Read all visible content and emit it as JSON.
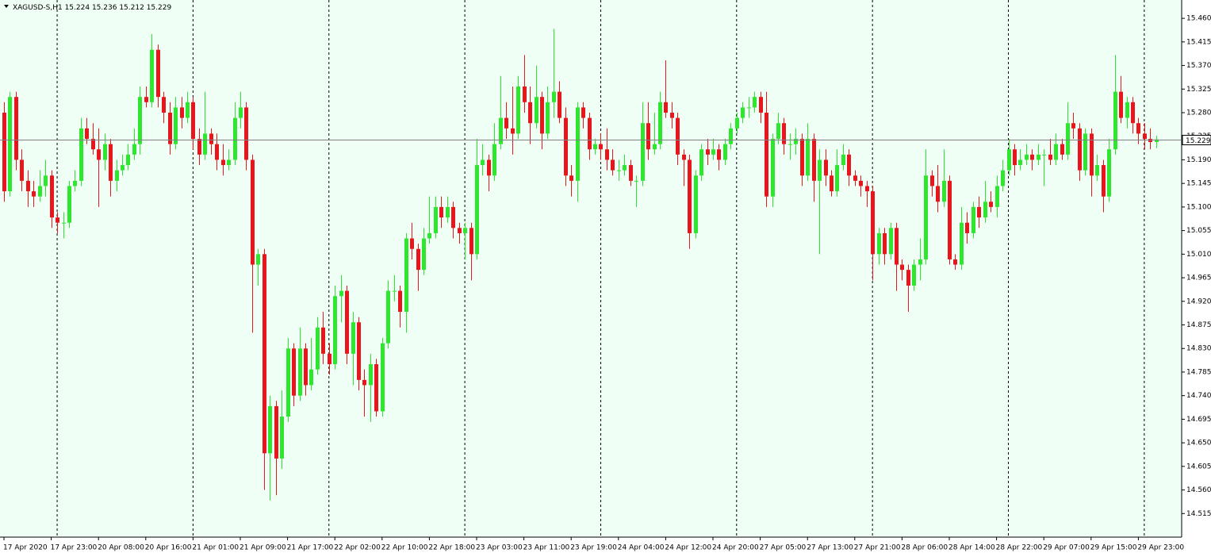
{
  "chart_data": {
    "type": "candlestick",
    "title": "XAGUSD-S,H1",
    "up_color": "#2ee62e",
    "down_color": "#e8161c",
    "ylim": [
      14.47,
      15.495
    ],
    "yticks": [
      {
        "value": 15.46,
        "label": "15.460"
      },
      {
        "value": 15.415,
        "label": "15.415"
      },
      {
        "value": 15.37,
        "label": "15.370"
      },
      {
        "value": 15.325,
        "label": "15.325"
      },
      {
        "value": 15.28,
        "label": "15.280"
      },
      {
        "value": 15.235,
        "label": "15.235"
      },
      {
        "value": 15.19,
        "label": "15.190"
      },
      {
        "value": 15.145,
        "label": "15.145"
      },
      {
        "value": 15.1,
        "label": "15.100"
      },
      {
        "value": 15.055,
        "label": "15.055"
      },
      {
        "value": 15.01,
        "label": "15.010"
      },
      {
        "value": 14.965,
        "label": "14.965"
      },
      {
        "value": 14.92,
        "label": "14.920"
      },
      {
        "value": 14.875,
        "label": "14.875"
      },
      {
        "value": 14.83,
        "label": "14.830"
      },
      {
        "value": 14.785,
        "label": "14.785"
      },
      {
        "value": 14.74,
        "label": "14.740"
      },
      {
        "value": 14.695,
        "label": "14.695"
      },
      {
        "value": 14.65,
        "label": "14.650"
      },
      {
        "value": 14.605,
        "label": "14.605"
      },
      {
        "value": 14.56,
        "label": "14.560"
      },
      {
        "value": 14.515,
        "label": "14.515"
      }
    ],
    "xlabels": [
      "17 Apr 2020",
      "17 Apr 23:00",
      "20 Apr 08:00",
      "20 Apr 16:00",
      "21 Apr 01:00",
      "21 Apr 09:00",
      "21 Apr 17:00",
      "22 Apr 02:00",
      "22 Apr 10:00",
      "22 Apr 18:00",
      "23 Apr 03:00",
      "23 Apr 11:00",
      "23 Apr 19:00",
      "24 Apr 04:00",
      "24 Apr 12:00",
      "24 Apr 20:00",
      "27 Apr 05:00",
      "27 Apr 13:00",
      "27 Apr 21:00",
      "28 Apr 06:00",
      "28 Apr 14:00",
      "28 Apr 22:00",
      "29 Apr 07:00",
      "29 Apr 15:00",
      "29 Apr 23:00"
    ],
    "ohlc": [
      [
        15.28,
        15.3,
        15.11,
        15.13
      ],
      [
        15.13,
        15.32,
        15.12,
        15.31
      ],
      [
        15.31,
        15.32,
        15.17,
        15.19
      ],
      [
        15.19,
        15.21,
        15.13,
        15.15
      ],
      [
        15.15,
        15.17,
        15.1,
        15.13
      ],
      [
        15.13,
        15.15,
        15.1,
        15.12
      ],
      [
        15.12,
        15.17,
        15.11,
        15.14
      ],
      [
        15.14,
        15.19,
        15.12,
        15.16
      ],
      [
        15.16,
        15.17,
        15.06,
        15.08
      ],
      [
        15.08,
        15.09,
        15.05,
        15.07
      ],
      [
        15.07,
        15.09,
        15.04,
        15.07
      ],
      [
        15.07,
        15.15,
        15.06,
        15.14
      ],
      [
        15.14,
        15.17,
        15.13,
        15.15
      ],
      [
        15.15,
        15.27,
        15.14,
        15.25
      ],
      [
        15.25,
        15.27,
        15.22,
        15.23
      ],
      [
        15.23,
        15.26,
        15.2,
        15.21
      ],
      [
        15.21,
        15.25,
        15.1,
        15.19
      ],
      [
        15.19,
        15.24,
        15.17,
        15.22
      ],
      [
        15.22,
        15.23,
        15.12,
        15.15
      ],
      [
        15.15,
        15.19,
        15.13,
        15.17
      ],
      [
        15.17,
        15.2,
        15.16,
        15.18
      ],
      [
        15.18,
        15.22,
        15.17,
        15.2
      ],
      [
        15.2,
        15.25,
        15.19,
        15.22
      ],
      [
        15.22,
        15.33,
        15.2,
        15.31
      ],
      [
        15.31,
        15.33,
        15.29,
        15.3
      ],
      [
        15.3,
        15.43,
        15.29,
        15.4
      ],
      [
        15.4,
        15.41,
        15.29,
        15.31
      ],
      [
        15.31,
        15.32,
        15.26,
        15.28
      ],
      [
        15.28,
        15.3,
        15.2,
        15.22
      ],
      [
        15.22,
        15.31,
        15.21,
        15.29
      ],
      [
        15.29,
        15.31,
        15.25,
        15.27
      ],
      [
        15.27,
        15.32,
        15.26,
        15.3
      ],
      [
        15.3,
        15.31,
        15.21,
        15.23
      ],
      [
        15.23,
        15.25,
        15.18,
        15.2
      ],
      [
        15.2,
        15.32,
        15.19,
        15.24
      ],
      [
        15.24,
        15.25,
        15.2,
        15.22
      ],
      [
        15.22,
        15.24,
        15.17,
        15.19
      ],
      [
        15.19,
        15.22,
        15.16,
        15.18
      ],
      [
        15.18,
        15.21,
        15.17,
        15.19
      ],
      [
        15.19,
        15.3,
        15.18,
        15.27
      ],
      [
        15.27,
        15.32,
        15.25,
        15.29
      ],
      [
        15.29,
        15.3,
        15.17,
        15.19
      ],
      [
        15.19,
        15.2,
        14.86,
        14.99
      ],
      [
        14.99,
        15.02,
        14.95,
        15.01
      ],
      [
        15.01,
        15.02,
        14.56,
        14.63
      ],
      [
        14.63,
        14.74,
        14.54,
        14.72
      ],
      [
        14.72,
        14.73,
        14.55,
        14.62
      ],
      [
        14.62,
        14.75,
        14.6,
        14.7
      ],
      [
        14.7,
        14.85,
        14.69,
        14.83
      ],
      [
        14.83,
        14.84,
        14.72,
        14.74
      ],
      [
        14.74,
        14.87,
        14.73,
        14.83
      ],
      [
        14.83,
        14.84,
        14.74,
        14.76
      ],
      [
        14.76,
        14.85,
        14.75,
        14.79
      ],
      [
        14.79,
        14.89,
        14.78,
        14.87
      ],
      [
        14.87,
        14.9,
        14.8,
        14.82
      ],
      [
        14.82,
        14.84,
        14.78,
        14.8
      ],
      [
        14.8,
        14.95,
        14.79,
        14.93
      ],
      [
        14.93,
        14.97,
        14.88,
        14.94
      ],
      [
        14.94,
        14.95,
        14.8,
        14.82
      ],
      [
        14.82,
        14.9,
        14.76,
        14.88
      ],
      [
        14.88,
        14.89,
        14.75,
        14.77
      ],
      [
        14.77,
        14.79,
        14.7,
        14.76
      ],
      [
        14.76,
        14.82,
        14.69,
        14.8
      ],
      [
        14.8,
        14.81,
        14.7,
        14.71
      ],
      [
        14.71,
        14.85,
        14.7,
        14.84
      ],
      [
        14.84,
        14.96,
        14.83,
        14.94
      ],
      [
        14.94,
        14.97,
        14.92,
        14.94
      ],
      [
        14.94,
        14.95,
        14.87,
        14.9
      ],
      [
        14.9,
        15.05,
        14.86,
        15.04
      ],
      [
        15.04,
        15.07,
        15.0,
        15.02
      ],
      [
        15.02,
        15.03,
        14.94,
        14.98
      ],
      [
        14.98,
        15.06,
        14.97,
        15.04
      ],
      [
        15.04,
        15.12,
        15.03,
        15.05
      ],
      [
        15.05,
        15.12,
        15.04,
        15.1
      ],
      [
        15.1,
        15.12,
        15.06,
        15.08
      ],
      [
        15.08,
        15.12,
        15.07,
        15.1
      ],
      [
        15.1,
        15.11,
        15.04,
        15.06
      ],
      [
        15.06,
        15.07,
        15.03,
        15.05
      ],
      [
        15.05,
        15.07,
        15.0,
        15.06
      ],
      [
        15.06,
        15.07,
        14.96,
        15.01
      ],
      [
        15.01,
        15.23,
        15.0,
        15.18
      ],
      [
        15.18,
        15.22,
        15.16,
        15.19
      ],
      [
        15.19,
        15.2,
        15.13,
        15.16
      ],
      [
        15.16,
        15.26,
        15.15,
        15.22
      ],
      [
        15.22,
        15.35,
        15.21,
        15.27
      ],
      [
        15.27,
        15.3,
        15.23,
        15.25
      ],
      [
        15.25,
        15.33,
        15.2,
        15.24
      ],
      [
        15.24,
        15.35,
        15.23,
        15.33
      ],
      [
        15.33,
        15.39,
        15.28,
        15.3
      ],
      [
        15.3,
        15.33,
        15.22,
        15.26
      ],
      [
        15.26,
        15.37,
        15.25,
        15.31
      ],
      [
        15.31,
        15.32,
        15.21,
        15.24
      ],
      [
        15.24,
        15.33,
        15.23,
        15.3
      ],
      [
        15.3,
        15.44,
        15.27,
        15.32
      ],
      [
        15.32,
        15.34,
        15.26,
        15.27
      ],
      [
        15.27,
        15.29,
        15.14,
        15.16
      ],
      [
        15.16,
        15.18,
        15.12,
        15.15
      ],
      [
        15.15,
        15.3,
        15.11,
        15.29
      ],
      [
        15.29,
        15.3,
        15.25,
        15.27
      ],
      [
        15.27,
        15.28,
        15.19,
        15.21
      ],
      [
        15.21,
        15.23,
        15.2,
        15.22
      ],
      [
        15.22,
        15.24,
        15.19,
        15.21
      ],
      [
        15.21,
        15.25,
        15.17,
        15.19
      ],
      [
        15.19,
        15.21,
        15.16,
        15.17
      ],
      [
        15.17,
        15.19,
        15.15,
        15.17
      ],
      [
        15.17,
        15.2,
        15.16,
        15.18
      ],
      [
        15.18,
        15.19,
        15.14,
        15.15
      ],
      [
        15.15,
        15.16,
        15.1,
        15.15
      ],
      [
        15.15,
        15.3,
        15.14,
        15.26
      ],
      [
        15.26,
        15.3,
        15.19,
        15.21
      ],
      [
        15.21,
        15.28,
        15.2,
        15.22
      ],
      [
        15.22,
        15.32,
        15.21,
        15.3
      ],
      [
        15.3,
        15.38,
        15.27,
        15.28
      ],
      [
        15.28,
        15.3,
        15.25,
        15.27
      ],
      [
        15.27,
        15.28,
        15.18,
        15.2
      ],
      [
        15.2,
        15.21,
        15.14,
        15.19
      ],
      [
        15.19,
        15.2,
        15.02,
        15.05
      ],
      [
        15.05,
        15.17,
        15.04,
        15.16
      ],
      [
        15.16,
        15.22,
        15.15,
        15.21
      ],
      [
        15.21,
        15.23,
        15.18,
        15.2
      ],
      [
        15.2,
        15.23,
        15.19,
        15.21
      ],
      [
        15.21,
        15.22,
        15.17,
        15.19
      ],
      [
        15.19,
        15.23,
        15.18,
        15.22
      ],
      [
        15.22,
        15.26,
        15.21,
        15.25
      ],
      [
        15.25,
        15.28,
        15.24,
        15.27
      ],
      [
        15.27,
        15.3,
        15.26,
        15.29
      ],
      [
        15.29,
        15.31,
        15.27,
        15.29
      ],
      [
        15.29,
        15.32,
        15.28,
        15.31
      ],
      [
        15.31,
        15.32,
        15.26,
        15.28
      ],
      [
        15.28,
        15.32,
        15.1,
        15.12
      ],
      [
        15.12,
        15.24,
        15.1,
        15.23
      ],
      [
        15.23,
        15.28,
        15.22,
        15.26
      ],
      [
        15.26,
        15.27,
        15.2,
        15.22
      ],
      [
        15.22,
        15.24,
        15.19,
        15.22
      ],
      [
        15.22,
        15.25,
        15.2,
        15.23
      ],
      [
        15.23,
        15.24,
        15.14,
        15.16
      ],
      [
        15.16,
        15.26,
        15.15,
        15.23
      ],
      [
        15.23,
        15.24,
        15.11,
        15.15
      ],
      [
        15.15,
        15.21,
        15.01,
        15.19
      ],
      [
        15.19,
        15.21,
        15.14,
        15.16
      ],
      [
        15.16,
        15.17,
        15.12,
        15.13
      ],
      [
        15.13,
        15.21,
        15.12,
        15.18
      ],
      [
        15.18,
        15.22,
        15.17,
        15.2
      ],
      [
        15.2,
        15.21,
        15.14,
        15.16
      ],
      [
        15.16,
        15.17,
        15.14,
        15.15
      ],
      [
        15.15,
        15.16,
        15.12,
        15.14
      ],
      [
        15.14,
        15.15,
        15.1,
        15.13
      ],
      [
        15.13,
        15.14,
        14.96,
        15.01
      ],
      [
        15.01,
        15.06,
        14.99,
        15.05
      ],
      [
        15.05,
        15.06,
        14.99,
        15.01
      ],
      [
        15.01,
        15.07,
        15.0,
        15.06
      ],
      [
        15.06,
        15.07,
        14.94,
        14.99
      ],
      [
        14.99,
        15.0,
        14.96,
        14.98
      ],
      [
        14.98,
        14.99,
        14.9,
        14.95
      ],
      [
        14.95,
        15.0,
        14.94,
        14.99
      ],
      [
        14.99,
        15.04,
        14.96,
        15.0
      ],
      [
        15.0,
        15.21,
        14.99,
        15.16
      ],
      [
        15.16,
        15.17,
        15.12,
        15.14
      ],
      [
        15.14,
        15.18,
        15.09,
        15.11
      ],
      [
        15.11,
        15.21,
        15.1,
        15.15
      ],
      [
        15.15,
        15.16,
        14.99,
        15.0
      ],
      [
        15.0,
        15.01,
        14.98,
        14.99
      ],
      [
        14.99,
        15.1,
        14.98,
        15.07
      ],
      [
        15.07,
        15.09,
        15.03,
        15.05
      ],
      [
        15.05,
        15.11,
        15.04,
        15.1
      ],
      [
        15.1,
        15.12,
        15.06,
        15.08
      ],
      [
        15.08,
        15.15,
        15.07,
        15.11
      ],
      [
        15.11,
        15.13,
        15.09,
        15.1
      ],
      [
        15.1,
        15.16,
        15.08,
        15.14
      ],
      [
        15.14,
        15.19,
        15.13,
        15.17
      ],
      [
        15.17,
        15.23,
        15.16,
        15.21
      ],
      [
        15.21,
        15.22,
        15.16,
        15.18
      ],
      [
        15.18,
        15.21,
        15.17,
        15.19
      ],
      [
        15.19,
        15.22,
        15.18,
        15.2
      ],
      [
        15.2,
        15.21,
        15.17,
        15.19
      ],
      [
        15.19,
        15.22,
        15.18,
        15.2
      ],
      [
        15.2,
        15.21,
        15.14,
        15.2
      ],
      [
        15.2,
        15.23,
        15.18,
        15.19
      ],
      [
        15.19,
        15.24,
        15.18,
        15.22
      ],
      [
        15.22,
        15.23,
        15.19,
        15.2
      ],
      [
        15.2,
        15.3,
        15.19,
        15.26
      ],
      [
        15.26,
        15.28,
        15.23,
        15.25
      ],
      [
        15.25,
        15.26,
        15.15,
        15.17
      ],
      [
        15.17,
        15.25,
        15.16,
        15.24
      ],
      [
        15.24,
        15.25,
        15.12,
        15.16
      ],
      [
        15.16,
        15.2,
        15.15,
        15.18
      ],
      [
        15.18,
        15.19,
        15.09,
        15.12
      ],
      [
        15.12,
        15.23,
        15.11,
        15.21
      ],
      [
        15.21,
        15.39,
        15.2,
        15.32
      ],
      [
        15.32,
        15.35,
        15.26,
        15.27
      ],
      [
        15.27,
        15.31,
        15.25,
        15.3
      ],
      [
        15.3,
        15.31,
        15.24,
        15.26
      ],
      [
        15.26,
        15.27,
        15.22,
        15.24
      ],
      [
        15.24,
        15.26,
        15.21,
        15.23
      ],
      [
        15.23,
        15.25,
        15.21,
        15.224
      ],
      [
        15.224,
        15.236,
        15.212,
        15.229
      ]
    ]
  }
}
